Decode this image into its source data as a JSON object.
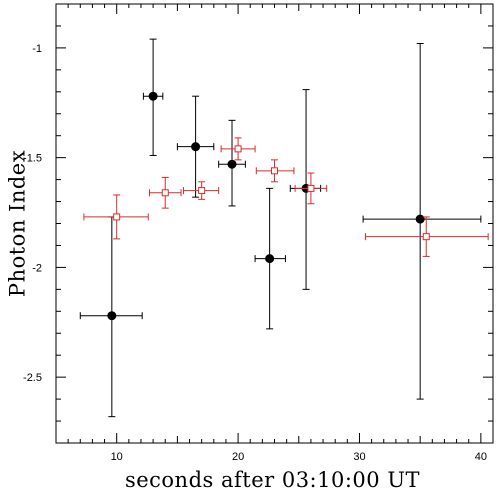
{
  "chart_data": {
    "type": "scatter",
    "title": "",
    "xlabel": "seconds after 03:10:00 UT",
    "ylabel": "Photon Index",
    "xlim": [
      5,
      41
    ],
    "ylim": [
      -2.8,
      -0.8
    ],
    "xticks": [
      10,
      20,
      30,
      40
    ],
    "yticks": [
      -1,
      -1.5,
      -2,
      -2.5
    ],
    "ytick_labels": [
      "-1",
      "-1.5",
      "-2",
      "-2.5"
    ],
    "grid": false,
    "series": [
      {
        "marker": "filled-circle",
        "color": "#000000",
        "points": [
          {
            "x": 9.6,
            "y": -2.22,
            "xlo": 7.0,
            "xhi": 12.1,
            "ylo": -2.68,
            "yhi": -1.77
          },
          {
            "x": 13.0,
            "y": -1.22,
            "xlo": 12.2,
            "xhi": 13.8,
            "ylo": -1.49,
            "yhi": -0.96
          },
          {
            "x": 16.5,
            "y": -1.45,
            "xlo": 15.0,
            "xhi": 18.0,
            "ylo": -1.68,
            "yhi": -1.22
          },
          {
            "x": 19.5,
            "y": -1.53,
            "xlo": 18.4,
            "xhi": 20.6,
            "ylo": -1.72,
            "yhi": -1.33
          },
          {
            "x": 22.6,
            "y": -1.96,
            "xlo": 21.4,
            "xhi": 23.9,
            "ylo": -2.28,
            "yhi": -1.64
          },
          {
            "x": 25.6,
            "y": -1.64,
            "xlo": 24.3,
            "xhi": 26.8,
            "ylo": -2.1,
            "yhi": -1.19
          },
          {
            "x": 35.0,
            "y": -1.78,
            "xlo": 30.3,
            "xhi": 40.0,
            "ylo": -2.6,
            "yhi": -0.98
          }
        ]
      },
      {
        "marker": "open-square",
        "color": "#dd2a2a",
        "points": [
          {
            "x": 10.0,
            "y": -1.77,
            "xlo": 7.3,
            "xhi": 12.6,
            "ylo": -1.87,
            "yhi": -1.67
          },
          {
            "x": 14.0,
            "y": -1.66,
            "xlo": 12.7,
            "xhi": 15.3,
            "ylo": -1.73,
            "yhi": -1.59
          },
          {
            "x": 17.0,
            "y": -1.65,
            "xlo": 15.5,
            "xhi": 18.4,
            "ylo": -1.69,
            "yhi": -1.61
          },
          {
            "x": 20.0,
            "y": -1.46,
            "xlo": 18.6,
            "xhi": 21.4,
            "ylo": -1.51,
            "yhi": -1.41
          },
          {
            "x": 23.0,
            "y": -1.56,
            "xlo": 21.5,
            "xhi": 24.6,
            "ylo": -1.61,
            "yhi": -1.51
          },
          {
            "x": 26.0,
            "y": -1.64,
            "xlo": 24.7,
            "xhi": 27.3,
            "ylo": -1.71,
            "yhi": -1.57
          },
          {
            "x": 35.5,
            "y": -1.86,
            "xlo": 30.5,
            "xhi": 40.6,
            "ylo": -1.95,
            "yhi": -1.77
          }
        ]
      }
    ]
  }
}
